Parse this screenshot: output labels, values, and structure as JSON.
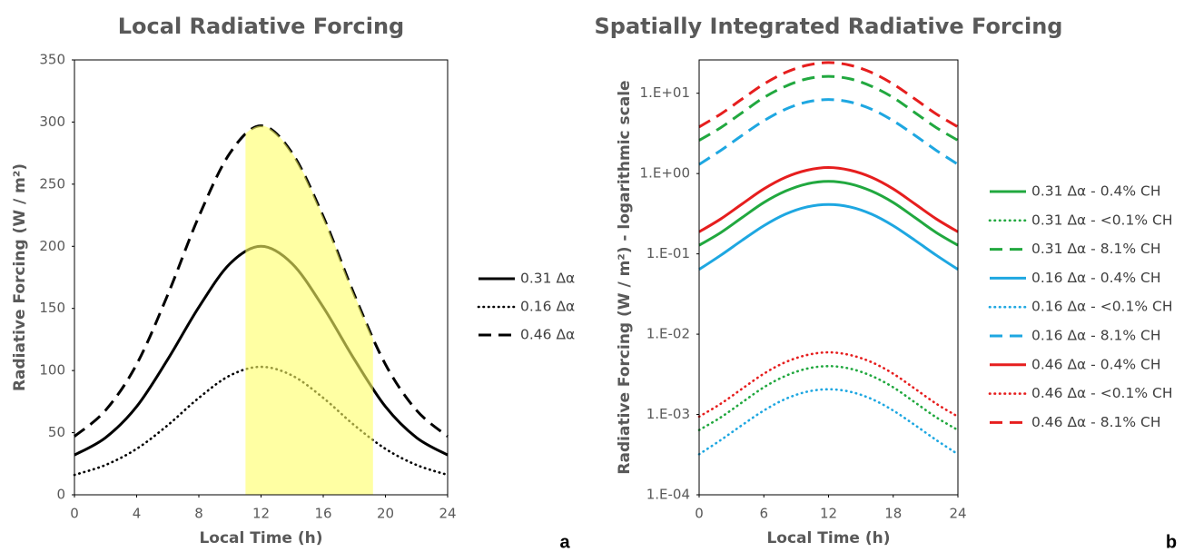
{
  "chart_data": [
    {
      "type": "line",
      "title": "Local Radiative Forcing",
      "xlabel": "Local Time  (h)",
      "ylabel": "Radiative Forcing (W / m²)",
      "panel_label": "a",
      "x": [
        0,
        2,
        4,
        6,
        8,
        10,
        12,
        14,
        16,
        18,
        20,
        22,
        24
      ],
      "xlim": [
        0,
        24
      ],
      "xticks": [
        0,
        4,
        8,
        12,
        16,
        20,
        24
      ],
      "ylim": [
        0,
        350
      ],
      "yticks": [
        0,
        50,
        100,
        150,
        200,
        250,
        300,
        350
      ],
      "log_scale": false,
      "grid": false,
      "legend": "right",
      "shaded_span": [
        11,
        19.2
      ],
      "shade_color": "#ffff66",
      "series": [
        {
          "name": "0.31 Δα",
          "color": "#000000",
          "style": "solid",
          "values": [
            32,
            46,
            71,
            109,
            151,
            186,
            200,
            186,
            151,
            109,
            71,
            46,
            32
          ]
        },
        {
          "name": "0.16 Δα",
          "color": "#000000",
          "style": "dotted",
          "values": [
            16,
            24,
            37,
            56,
            78,
            96,
            103,
            96,
            78,
            56,
            37,
            24,
            16
          ]
        },
        {
          "name": "0.46 Δα",
          "color": "#000000",
          "style": "dashed",
          "values": [
            47,
            68,
            105,
            161,
            224,
            275,
            297,
            275,
            224,
            161,
            105,
            68,
            47
          ]
        }
      ]
    },
    {
      "type": "line",
      "title": "Spatially Integrated Radiative Forcing",
      "xlabel": "Local Time  (h)",
      "ylabel": "Radiative Forcing (W / m²) - logarithmic scale",
      "panel_label": "b",
      "x": [
        0,
        2,
        4,
        6,
        8,
        10,
        12,
        14,
        16,
        18,
        20,
        22,
        24
      ],
      "xlim": [
        0,
        24
      ],
      "xticks": [
        0,
        6,
        12,
        18,
        24
      ],
      "ylim": [
        0.0001,
        26
      ],
      "yticks": [
        {
          "value": 0.0001,
          "label": "1.E-04"
        },
        {
          "value": 0.001,
          "label": "1.E-03"
        },
        {
          "value": 0.01,
          "label": "1.E-02"
        },
        {
          "value": 0.1,
          "label": "1.E-01"
        },
        {
          "value": 1,
          "label": "1.E+00"
        },
        {
          "value": 10,
          "label": "1.E+01"
        }
      ],
      "log_scale": true,
      "grid": false,
      "legend": "right",
      "series": [
        {
          "name": "0.31 Δα - 0.4% CH",
          "color": "#21a83f",
          "style": "solid",
          "values": [
            0.128,
            0.184,
            0.284,
            0.436,
            0.604,
            0.744,
            0.8,
            0.744,
            0.604,
            0.436,
            0.284,
            0.184,
            0.128
          ]
        },
        {
          "name": "0.31 Δα - <0.1% CH",
          "color": "#21a83f",
          "style": "dotted",
          "values": [
            0.00064,
            0.00092,
            0.00142,
            0.00218,
            0.00302,
            0.00372,
            0.004,
            0.00372,
            0.00302,
            0.00218,
            0.00142,
            0.00092,
            0.00064
          ]
        },
        {
          "name": "0.31 Δα - 8.1% CH",
          "color": "#21a83f",
          "style": "dashed",
          "values": [
            2.59,
            3.73,
            5.75,
            8.83,
            12.2,
            15.1,
            16.2,
            15.1,
            12.2,
            8.83,
            5.75,
            3.73,
            2.59
          ]
        },
        {
          "name": "0.16 Δα - 0.4% CH",
          "color": "#1ea7e1",
          "style": "solid",
          "values": [
            0.064,
            0.096,
            0.148,
            0.224,
            0.312,
            0.384,
            0.412,
            0.384,
            0.312,
            0.224,
            0.148,
            0.096,
            0.064
          ]
        },
        {
          "name": "0.16 Δα - <0.1% CH",
          "color": "#1ea7e1",
          "style": "dotted",
          "values": [
            0.00032,
            0.00048,
            0.00074,
            0.00112,
            0.00156,
            0.00192,
            0.00206,
            0.00192,
            0.00156,
            0.00112,
            0.00074,
            0.00048,
            0.00032
          ]
        },
        {
          "name": "0.16 Δα - 8.1% CH",
          "color": "#1ea7e1",
          "style": "dashed",
          "values": [
            1.3,
            1.94,
            3.0,
            4.54,
            6.32,
            7.78,
            8.34,
            7.78,
            6.32,
            4.54,
            3.0,
            1.94,
            1.3
          ]
        },
        {
          "name": "0.46 Δα - 0.4% CH",
          "color": "#e61e1e",
          "style": "solid",
          "values": [
            0.188,
            0.272,
            0.42,
            0.644,
            0.896,
            1.1,
            1.19,
            1.1,
            0.896,
            0.644,
            0.42,
            0.272,
            0.188
          ]
        },
        {
          "name": "0.46 Δα - <0.1% CH",
          "color": "#e61e1e",
          "style": "dotted",
          "values": [
            0.00094,
            0.00136,
            0.0021,
            0.00322,
            0.00448,
            0.0055,
            0.00594,
            0.0055,
            0.00448,
            0.00322,
            0.0021,
            0.00136,
            0.00094
          ]
        },
        {
          "name": "0.46 Δα - 8.1% CH",
          "color": "#e61e1e",
          "style": "dashed",
          "values": [
            3.81,
            5.51,
            8.51,
            13.0,
            18.1,
            22.3,
            24.1,
            22.3,
            18.1,
            13.0,
            8.51,
            5.51,
            3.81
          ]
        }
      ]
    }
  ]
}
